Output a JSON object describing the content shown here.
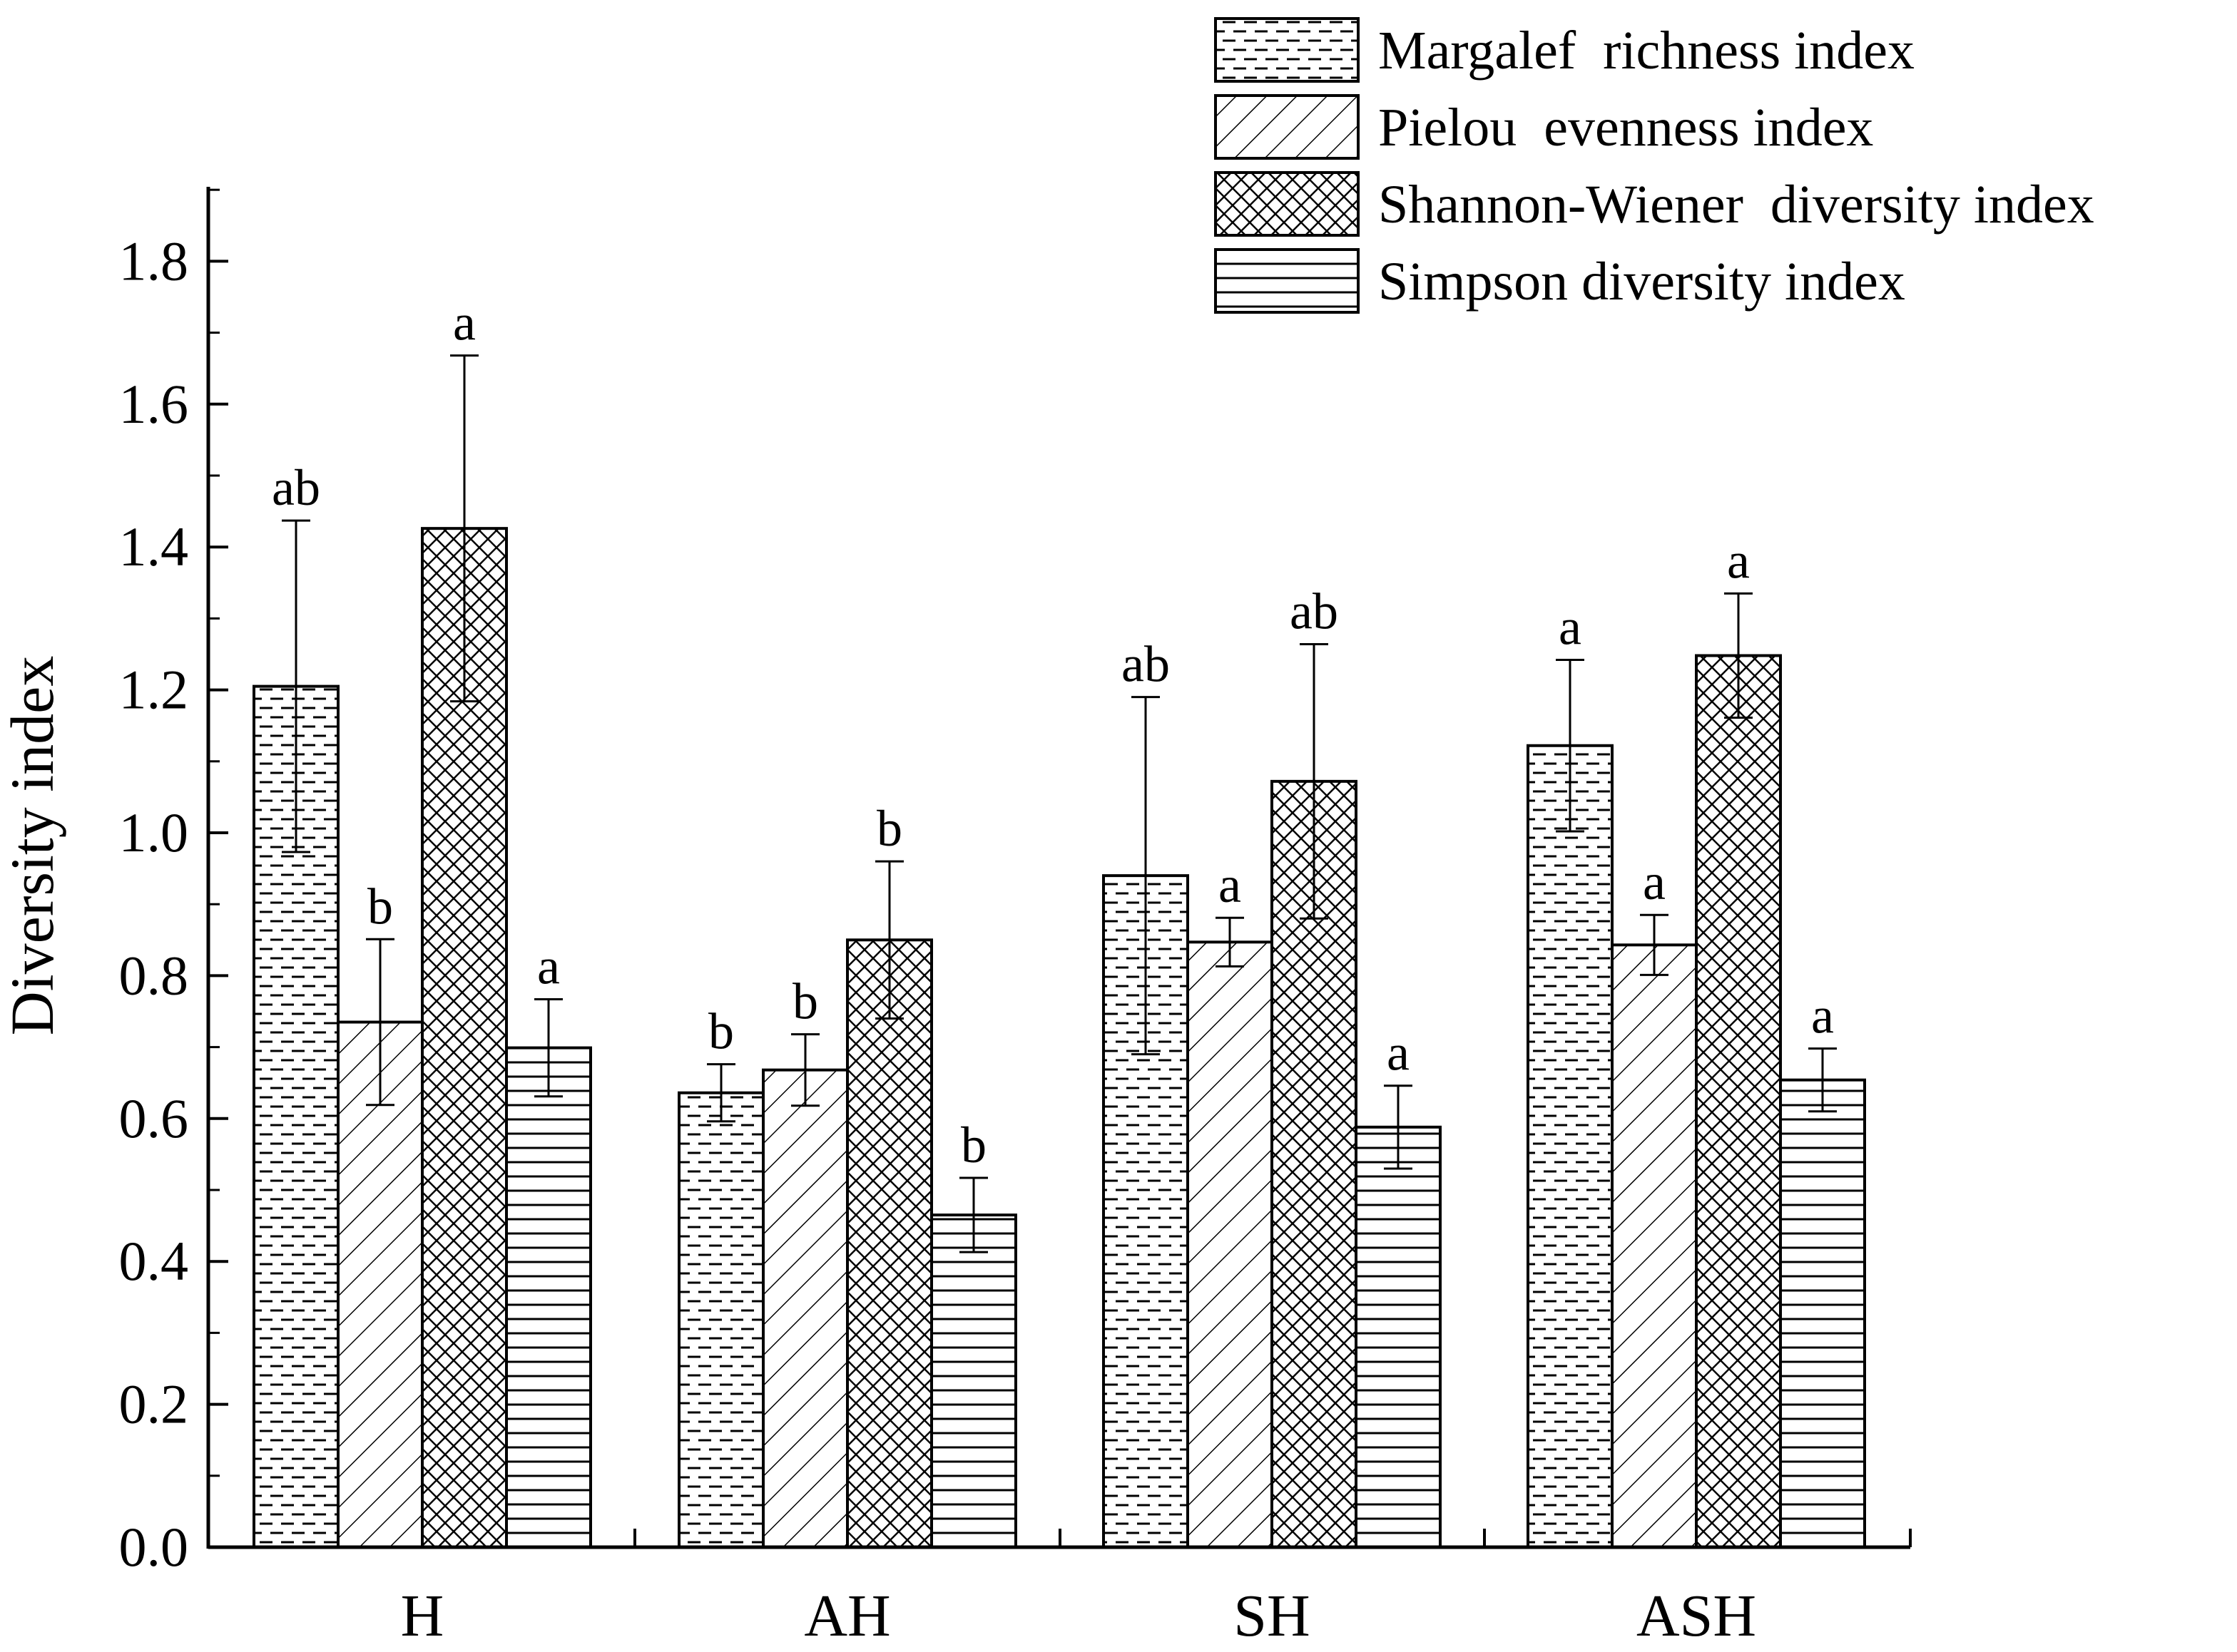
{
  "chart_data": {
    "type": "bar",
    "title": "",
    "xlabel": "",
    "ylabel": "Diversity index",
    "ylim": [
      0,
      1.9
    ],
    "yticks": [
      "0.0",
      "0.2",
      "0.4",
      "0.6",
      "0.8",
      "1.0",
      "1.2",
      "1.4",
      "1.6",
      "1.8"
    ],
    "categories": [
      "H",
      "AH",
      "SH",
      "ASH"
    ],
    "legend_position": "top-right",
    "series": [
      {
        "name": "Margalef  richness index",
        "pattern": "dashes",
        "values": [
          1.205,
          0.636,
          0.94,
          1.122
        ],
        "errors": [
          0.232,
          0.04,
          0.25,
          0.12
        ],
        "letters": [
          "ab",
          "b",
          "ab",
          "a"
        ]
      },
      {
        "name": "Pielou  evenness index",
        "pattern": "diagonal",
        "values": [
          0.735,
          0.668,
          0.847,
          0.843
        ],
        "errors": [
          0.116,
          0.05,
          0.034,
          0.042
        ],
        "letters": [
          "b",
          "b",
          "a",
          "a"
        ]
      },
      {
        "name": "Shannon-Wiener  diversity index",
        "pattern": "crosshatch",
        "values": [
          1.426,
          0.85,
          1.072,
          1.248
        ],
        "errors": [
          0.242,
          0.11,
          0.192,
          0.087
        ],
        "letters": [
          "a",
          "b",
          "ab",
          "a"
        ]
      },
      {
        "name": "Simpson diversity index",
        "pattern": "horizontal",
        "values": [
          0.699,
          0.465,
          0.588,
          0.654
        ],
        "errors": [
          0.068,
          0.052,
          0.058,
          0.044
        ],
        "letters": [
          "a",
          "b",
          "a",
          "a"
        ]
      }
    ]
  }
}
